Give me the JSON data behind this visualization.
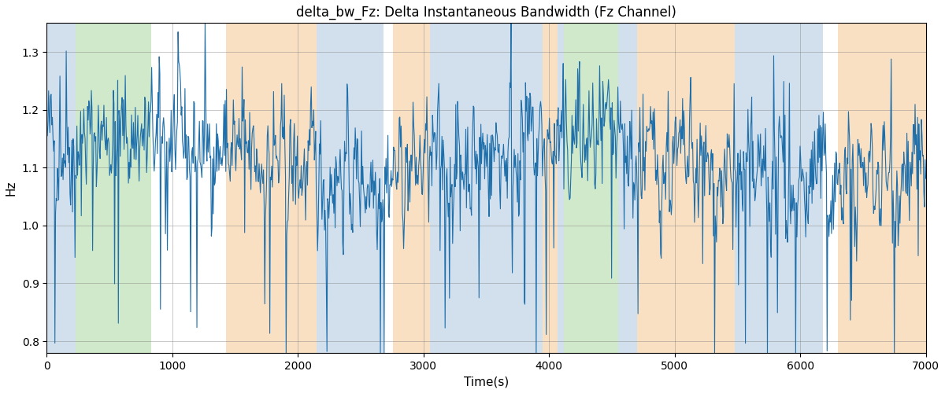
{
  "title": "delta_bw_Fz: Delta Instantaneous Bandwidth (Fz Channel)",
  "xlabel": "Time(s)",
  "ylabel": "Hz",
  "xlim": [
    0,
    7000
  ],
  "ylim": [
    0.78,
    1.35
  ],
  "line_color": "#1f6fab",
  "line_width": 0.8,
  "background_regions": [
    {
      "xmin": 0,
      "xmax": 230,
      "color": "#adc8e0",
      "alpha": 0.55
    },
    {
      "xmin": 230,
      "xmax": 830,
      "color": "#a8d8a0",
      "alpha": 0.55
    },
    {
      "xmin": 830,
      "xmax": 1430,
      "color": "#ffffff",
      "alpha": 0.0
    },
    {
      "xmin": 1430,
      "xmax": 2150,
      "color": "#f5c890",
      "alpha": 0.55
    },
    {
      "xmin": 2150,
      "xmax": 2680,
      "color": "#adc8e0",
      "alpha": 0.55
    },
    {
      "xmin": 2680,
      "xmax": 2760,
      "color": "#ffffff",
      "alpha": 0.0
    },
    {
      "xmin": 2760,
      "xmax": 3050,
      "color": "#f5c890",
      "alpha": 0.55
    },
    {
      "xmin": 3050,
      "xmax": 3950,
      "color": "#adc8e0",
      "alpha": 0.55
    },
    {
      "xmin": 3950,
      "xmax": 4070,
      "color": "#f5c890",
      "alpha": 0.55
    },
    {
      "xmin": 4070,
      "xmax": 4120,
      "color": "#adc8e0",
      "alpha": 0.55
    },
    {
      "xmin": 4120,
      "xmax": 4550,
      "color": "#a8d8a0",
      "alpha": 0.55
    },
    {
      "xmin": 4550,
      "xmax": 4700,
      "color": "#adc8e0",
      "alpha": 0.55
    },
    {
      "xmin": 4700,
      "xmax": 5480,
      "color": "#f5c890",
      "alpha": 0.55
    },
    {
      "xmin": 5480,
      "xmax": 6180,
      "color": "#adc8e0",
      "alpha": 0.55
    },
    {
      "xmin": 6180,
      "xmax": 6300,
      "color": "#ffffff",
      "alpha": 0.0
    },
    {
      "xmin": 6300,
      "xmax": 7000,
      "color": "#f5c890",
      "alpha": 0.55
    }
  ],
  "seed": 42,
  "n_points": 1400,
  "base_mean": 1.13,
  "noise_scale": 0.055
}
